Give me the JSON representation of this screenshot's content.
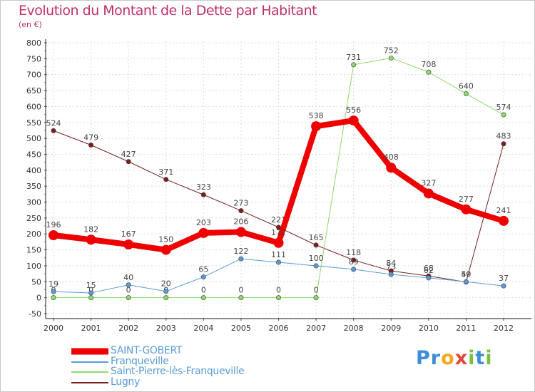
{
  "title": "Evolution du Montant de la Dette par Habitant",
  "subtitle": "(en €)",
  "logo": {
    "letters": [
      "P",
      "r",
      "o",
      "x",
      "i",
      "t",
      "i"
    ],
    "colors": [
      "#3a8fd6",
      "#3a8fd6",
      "#f5a623",
      "#e0483a",
      "#7ac143",
      "#3a8fd6",
      "#7ac143"
    ]
  },
  "chart_data": {
    "type": "line",
    "x": [
      "2000",
      "2001",
      "2002",
      "2003",
      "2004",
      "2005",
      "2006",
      "2007",
      "2008",
      "2009",
      "2010",
      "2011",
      "2012"
    ],
    "ylim": [
      -50,
      800
    ],
    "yticks": [
      "-50",
      "0",
      "50",
      "100",
      "150",
      "200",
      "250",
      "300",
      "350",
      "400",
      "450",
      "500",
      "550",
      "600",
      "650",
      "700",
      "750",
      "800"
    ],
    "grid": true,
    "legend_position": "bottom-left",
    "series": [
      {
        "name": "Lugny",
        "color": "#7a1f1f",
        "width": 1,
        "values": [
          524,
          479,
          427,
          371,
          323,
          273,
          221,
          165,
          118,
          84,
          68,
          49,
          483
        ],
        "labels": [
          "524",
          "479",
          "427",
          "371",
          "323",
          "273",
          "221",
          "165",
          "118",
          "84",
          "68",
          "49",
          "483"
        ]
      },
      {
        "name": "Saint-Pierre-lès-Franqueville",
        "color": "#8ed96a",
        "width": 1,
        "values": [
          0,
          0,
          0,
          0,
          0,
          0,
          0,
          0,
          731,
          752,
          708,
          640,
          574
        ],
        "labels": [
          "0",
          "0",
          "0",
          "0",
          "0",
          "0",
          "0",
          "0",
          "731",
          "752",
          "708",
          "640",
          "574"
        ]
      },
      {
        "name": "Franqueville",
        "color": "#5b9bd5",
        "width": 1,
        "values": [
          19,
          15,
          40,
          20,
          65,
          122,
          111,
          100,
          89,
          73,
          62,
          50,
          37
        ],
        "labels": [
          "19",
          "15",
          "40",
          "20",
          "65",
          "122",
          "111",
          "100",
          "89",
          "73",
          "62",
          "50",
          "37"
        ]
      },
      {
        "name": "SAINT-GOBERT",
        "color": "#ee0000",
        "width": 8,
        "values": [
          196,
          182,
          167,
          150,
          203,
          206,
          172,
          538,
          556,
          408,
          327,
          277,
          241
        ],
        "labels": [
          "196",
          "182",
          "167",
          "150",
          "203",
          "206",
          "172",
          "538",
          "556",
          "408",
          "327",
          "277",
          "241"
        ]
      }
    ],
    "legend_order": [
      "SAINT-GOBERT",
      "Franqueville",
      "Saint-Pierre-lès-Franqueville",
      "Lugny"
    ]
  }
}
